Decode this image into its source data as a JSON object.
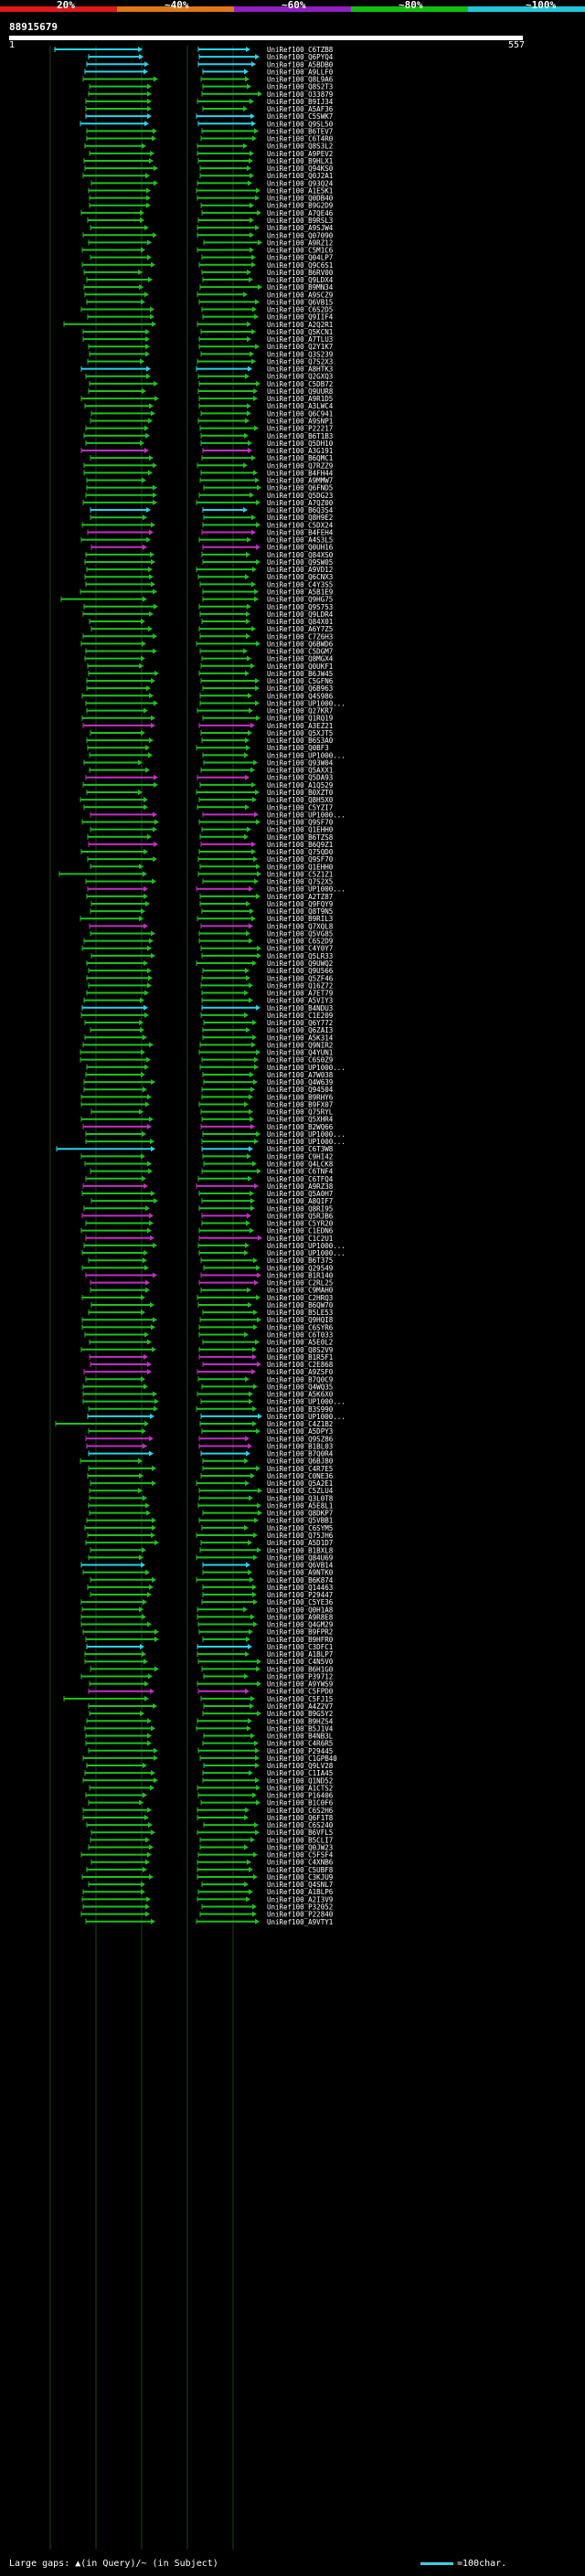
{
  "scale": {
    "labels": [
      "20%",
      "~40%",
      "~60%",
      "~80%",
      "~100%"
    ],
    "colors": [
      "#e01818",
      "#e07818",
      "#9020c0",
      "#10c010",
      "#20c8d8"
    ]
  },
  "query": {
    "id": "88915679",
    "start": "1",
    "end": "557"
  },
  "colors": {
    "cyan": "#28d4e8",
    "green": "#20c020",
    "magenta": "#c030c0",
    "guide": "#204020"
  },
  "hits": [
    {
      "id": "UniRef100_C6TZB8",
      "c": "c"
    },
    {
      "id": "UniRef100_Q6PYQ4",
      "c": "c"
    },
    {
      "id": "UniRef100_A5BDB0",
      "c": "c"
    },
    {
      "id": "UniRef100_A9LLF0",
      "c": "c"
    },
    {
      "id": "UniRef100_Q8L9A6",
      "c": "g"
    },
    {
      "id": "UniRef100_Q8S2T3",
      "c": "g"
    },
    {
      "id": "UniRef100_O33879",
      "c": "g"
    },
    {
      "id": "UniRef100_B9IJ34",
      "c": "g"
    },
    {
      "id": "UniRef100_A5AF36",
      "c": "g"
    },
    {
      "id": "UniRef100_C5SWK7",
      "c": "c"
    },
    {
      "id": "UniRef100_Q9SL50",
      "c": "c"
    },
    {
      "id": "UniRef100_B6TEV7",
      "c": "g"
    },
    {
      "id": "UniRef100_C6T4R0",
      "c": "g"
    },
    {
      "id": "UniRef100_Q8S3L2",
      "c": "g"
    },
    {
      "id": "UniRef100_A9PEV2",
      "c": "g"
    },
    {
      "id": "UniRef100_B9HLX1",
      "c": "g"
    },
    {
      "id": "UniRef100_Q94KS0",
      "c": "g"
    },
    {
      "id": "UniRef100_Q0J2A1",
      "c": "g"
    },
    {
      "id": "UniRef100_Q93Q24",
      "c": "g"
    },
    {
      "id": "UniRef100_A1E5K1",
      "c": "g"
    },
    {
      "id": "UniRef100_Q0DB40",
      "c": "g"
    },
    {
      "id": "UniRef100_B9G2D9",
      "c": "g"
    },
    {
      "id": "UniRef100_A7QE46",
      "c": "g"
    },
    {
      "id": "UniRef100_B9RSL3",
      "c": "g"
    },
    {
      "id": "UniRef100_A9SJW4",
      "c": "g"
    },
    {
      "id": "UniRef100_Q07090",
      "c": "g"
    },
    {
      "id": "UniRef100_A9RZ12",
      "c": "g"
    },
    {
      "id": "UniRef100_C5M1C6",
      "c": "g"
    },
    {
      "id": "UniRef100_Q04LP7",
      "c": "g"
    },
    {
      "id": "UniRef100_Q9C6S1",
      "c": "g"
    },
    {
      "id": "UniRef100_B6RV00",
      "c": "g"
    },
    {
      "id": "UniRef100_Q9LDX4",
      "c": "g"
    },
    {
      "id": "UniRef100_B9MN34",
      "c": "g"
    },
    {
      "id": "UniRef100_A9SCZ9",
      "c": "g"
    },
    {
      "id": "UniRef100_Q6VB15",
      "c": "g"
    },
    {
      "id": "UniRef100_C6S2D5",
      "c": "g"
    },
    {
      "id": "UniRef100_Q9IIF4",
      "c": "g"
    },
    {
      "id": "UniRef100_A2Q2R1",
      "c": "g"
    },
    {
      "id": "UniRef100_Q5KCN1",
      "c": "g"
    },
    {
      "id": "UniRef100_A7TLU3",
      "c": "g"
    },
    {
      "id": "UniRef100_Q2Y1K7",
      "c": "g"
    },
    {
      "id": "UniRef100_Q3S239",
      "c": "g"
    },
    {
      "id": "UniRef100_Q7S2X3",
      "c": "g"
    },
    {
      "id": "UniRef100_A8HTK3",
      "c": "c"
    },
    {
      "id": "UniRef100_Q2GXQ3",
      "c": "g"
    },
    {
      "id": "UniRef100_C5DB72",
      "c": "g"
    },
    {
      "id": "UniRef100_Q9UUR8",
      "c": "g"
    },
    {
      "id": "UniRef100_A9R1D5",
      "c": "g"
    },
    {
      "id": "UniRef100_A3LWC4",
      "c": "g"
    },
    {
      "id": "UniRef100_Q6C941",
      "c": "g"
    },
    {
      "id": "UniRef100_A9SNP1",
      "c": "g"
    },
    {
      "id": "UniRef100_P22217",
      "c": "g"
    },
    {
      "id": "UniRef100_B6T1B3",
      "c": "g"
    },
    {
      "id": "UniRef100_Q5DH10",
      "c": "g"
    },
    {
      "id": "UniRef100_A3G191",
      "c": "m"
    },
    {
      "id": "UniRef100_B6QMC1",
      "c": "g"
    },
    {
      "id": "UniRef100_Q7RZZ9",
      "c": "g"
    },
    {
      "id": "UniRef100_B4FH44",
      "c": "g"
    },
    {
      "id": "UniRef100_A9MMW7",
      "c": "g"
    },
    {
      "id": "UniRef100_Q6FND5",
      "c": "g"
    },
    {
      "id": "UniRef100_Q5DG23",
      "c": "g"
    },
    {
      "id": "UniRef100_A7QZ00",
      "c": "g"
    },
    {
      "id": "UniRef100_B6Q3S4",
      "c": "c"
    },
    {
      "id": "UniRef100_Q8H9E2",
      "c": "g"
    },
    {
      "id": "UniRef100_C5DX24",
      "c": "g"
    },
    {
      "id": "UniRef100_B4FEH4",
      "c": "m"
    },
    {
      "id": "UniRef100_A4S3L5",
      "c": "g"
    },
    {
      "id": "UniRef100_Q0UH16",
      "c": "m"
    },
    {
      "id": "UniRef100_Q84XS0",
      "c": "g"
    },
    {
      "id": "UniRef100_Q9SW05",
      "c": "g"
    },
    {
      "id": "UniRef100_A9VD12",
      "c": "g"
    },
    {
      "id": "UniRef100_Q6CNX3",
      "c": "g"
    },
    {
      "id": "UniRef100_C4Y3S5",
      "c": "g"
    },
    {
      "id": "UniRef100_A5B1E9",
      "c": "g"
    },
    {
      "id": "UniRef100_Q9HG75",
      "c": "g"
    },
    {
      "id": "UniRef100_Q9S753",
      "c": "g"
    },
    {
      "id": "UniRef100_Q9LDR4",
      "c": "g"
    },
    {
      "id": "UniRef100_Q84X01",
      "c": "g"
    },
    {
      "id": "UniRef100_A6Y7Z5",
      "c": "g"
    },
    {
      "id": "UniRef100_C7Z6H3",
      "c": "g"
    },
    {
      "id": "UniRef100_Q6BWD6",
      "c": "g"
    },
    {
      "id": "UniRef100_C5DGM7",
      "c": "g"
    },
    {
      "id": "UniRef100_Q8MGX4",
      "c": "g"
    },
    {
      "id": "UniRef100_Q0UKF1",
      "c": "g"
    },
    {
      "id": "UniRef100_B6JW45",
      "c": "g"
    },
    {
      "id": "UniRef100_C5GFN6",
      "c": "g"
    },
    {
      "id": "UniRef100_Q6B963",
      "c": "g"
    },
    {
      "id": "UniRef100_Q4S986",
      "c": "g"
    },
    {
      "id": "UniRef100_UP1000...",
      "c": "g"
    },
    {
      "id": "UniRef100_Q27KR7",
      "c": "g"
    },
    {
      "id": "UniRef100_Q1RQ19",
      "c": "g"
    },
    {
      "id": "UniRef100_A3EZ21",
      "c": "m"
    },
    {
      "id": "UniRef100_Q5XJT5",
      "c": "g"
    },
    {
      "id": "UniRef100_B6S3A0",
      "c": "g"
    },
    {
      "id": "UniRef100_Q0BF3",
      "c": "g"
    },
    {
      "id": "UniRef100_UP1000...",
      "c": "g"
    },
    {
      "id": "UniRef100_Q93W04",
      "c": "g"
    },
    {
      "id": "UniRef100_Q5AXX1",
      "c": "g"
    },
    {
      "id": "UniRef100_Q5DA93",
      "c": "m"
    },
    {
      "id": "UniRef100_A1Q529",
      "c": "g"
    },
    {
      "id": "UniRef100_B0XZT0",
      "c": "g"
    },
    {
      "id": "UniRef100_Q8H5X0",
      "c": "g"
    },
    {
      "id": "UniRef100_C5YZI7",
      "c": "g"
    },
    {
      "id": "UniRef100_UP1000...",
      "c": "m"
    },
    {
      "id": "UniRef100_Q9SF70",
      "c": "g"
    },
    {
      "id": "UniRef100_Q1EHH0",
      "c": "g"
    },
    {
      "id": "UniRef100_B6TZS8",
      "c": "g"
    },
    {
      "id": "UniRef100_B6Q9Z1",
      "c": "m"
    },
    {
      "id": "UniRef100_Q75QD0",
      "c": "g"
    },
    {
      "id": "UniRef100_Q9SF70",
      "c": "g"
    },
    {
      "id": "UniRef100_Q1EHH0",
      "c": "g"
    },
    {
      "id": "UniRef100_C5Z1Z1",
      "c": "g"
    },
    {
      "id": "UniRef100_Q7S2X5",
      "c": "g"
    },
    {
      "id": "UniRef100_UP1000...",
      "c": "m"
    },
    {
      "id": "UniRef100_A2TZ87",
      "c": "g"
    },
    {
      "id": "UniRef100_Q9FQY9",
      "c": "g"
    },
    {
      "id": "UniRef100_Q8T9N5",
      "c": "g"
    },
    {
      "id": "UniRef100_B9RIL3",
      "c": "g"
    },
    {
      "id": "UniRef100_Q7XQL8",
      "c": "m"
    },
    {
      "id": "UniRef100_Q5VG85",
      "c": "g"
    },
    {
      "id": "UniRef100_C6S2D9",
      "c": "g"
    },
    {
      "id": "UniRef100_C4Y0Y7",
      "c": "g"
    },
    {
      "id": "UniRef100_Q5LR33",
      "c": "g"
    },
    {
      "id": "UniRef100_Q9UWQ2",
      "c": "g"
    },
    {
      "id": "UniRef100_Q9U566",
      "c": "g"
    },
    {
      "id": "UniRef100_Q5ZF46",
      "c": "g"
    },
    {
      "id": "UniRef100_Q16Z72",
      "c": "g"
    },
    {
      "id": "UniRef100_A7ET79",
      "c": "g"
    },
    {
      "id": "UniRef100_A5VIY3",
      "c": "g"
    },
    {
      "id": "UniRef100_B4NDU3",
      "c": "c"
    },
    {
      "id": "UniRef100_C1E209",
      "c": "g"
    },
    {
      "id": "UniRef100_Q6Y772",
      "c": "g"
    },
    {
      "id": "UniRef100_Q6ZAI3",
      "c": "g"
    },
    {
      "id": "UniRef100_A5K314",
      "c": "g"
    },
    {
      "id": "UniRef100_Q9NIR2",
      "c": "g"
    },
    {
      "id": "UniRef100_Q4YUN1",
      "c": "g"
    },
    {
      "id": "UniRef100_C6S0Z9",
      "c": "g"
    },
    {
      "id": "UniRef100_UP1000...",
      "c": "g"
    },
    {
      "id": "UniRef100_A7W038",
      "c": "g"
    },
    {
      "id": "UniRef100_Q4W639",
      "c": "g"
    },
    {
      "id": "UniRef100_Q94504",
      "c": "g"
    },
    {
      "id": "UniRef100_B9RHY6",
      "c": "g"
    },
    {
      "id": "UniRef100_B9FX07",
      "c": "g"
    },
    {
      "id": "UniRef100_Q75RYL",
      "c": "g"
    },
    {
      "id": "UniRef100_Q5XHR4",
      "c": "g"
    },
    {
      "id": "UniRef100_B2WQ66",
      "c": "m"
    },
    {
      "id": "UniRef100_UP1000...",
      "c": "g"
    },
    {
      "id": "UniRef100_UP1000...",
      "c": "g"
    },
    {
      "id": "UniRef100_C6T3W8",
      "c": "c"
    },
    {
      "id": "UniRef100_C9HI42",
      "c": "g"
    },
    {
      "id": "UniRef100_Q4LCK8",
      "c": "g"
    },
    {
      "id": "UniRef100_C6TNF4",
      "c": "g"
    },
    {
      "id": "UniRef100_C6TFQ4",
      "c": "g"
    },
    {
      "id": "UniRef100_A9RZ38",
      "c": "m"
    },
    {
      "id": "UniRef100_Q5A0H7",
      "c": "g"
    },
    {
      "id": "UniRef100_A8QIF7",
      "c": "g"
    },
    {
      "id": "UniRef100_Q8RI95",
      "c": "g"
    },
    {
      "id": "UniRef100_Q5RJB6",
      "c": "m"
    },
    {
      "id": "UniRef100_C5YR20",
      "c": "g"
    },
    {
      "id": "UniRef100_C1EDN6",
      "c": "g"
    },
    {
      "id": "UniRef100_C1C2U1",
      "c": "m"
    },
    {
      "id": "UniRef100_UP1000...",
      "c": "g"
    },
    {
      "id": "UniRef100_UP1000...",
      "c": "g"
    },
    {
      "id": "UniRef100_B6T375",
      "c": "g"
    },
    {
      "id": "UniRef100_Q29549",
      "c": "g"
    },
    {
      "id": "UniRef100_B1R140",
      "c": "m"
    },
    {
      "id": "UniRef100_C2RL25",
      "c": "m"
    },
    {
      "id": "UniRef100_C9MAH0",
      "c": "g"
    },
    {
      "id": "UniRef100_C2HRQ3",
      "c": "g"
    },
    {
      "id": "UniRef100_B6QW70",
      "c": "g"
    },
    {
      "id": "UniRef100_B5LE53",
      "c": "g"
    },
    {
      "id": "UniRef100_Q9HQI8",
      "c": "g"
    },
    {
      "id": "UniRef100_C6SYR6",
      "c": "g"
    },
    {
      "id": "UniRef100_C6T033",
      "c": "g"
    },
    {
      "id": "UniRef100_A5E0L2",
      "c": "g"
    },
    {
      "id": "UniRef100_Q8S2V9",
      "c": "g"
    },
    {
      "id": "UniRef100_B1R5F1",
      "c": "m"
    },
    {
      "id": "UniRef100_C2E868",
      "c": "m"
    },
    {
      "id": "UniRef100_A9ZSF0",
      "c": "m"
    },
    {
      "id": "UniRef100_B7Q0C9",
      "c": "g"
    },
    {
      "id": "UniRef100_Q4WQ35",
      "c": "g"
    },
    {
      "id": "UniRef100_A5K6X0",
      "c": "g"
    },
    {
      "id": "UniRef100_UP1000...",
      "c": "g"
    },
    {
      "id": "UniRef100_B3S990",
      "c": "g"
    },
    {
      "id": "UniRef100_UP1000...",
      "c": "c"
    },
    {
      "id": "UniRef100_C4Z1B2",
      "c": "g"
    },
    {
      "id": "UniRef100_A5DPY3",
      "c": "g"
    },
    {
      "id": "UniRef100_Q9SZ86",
      "c": "m"
    },
    {
      "id": "UniRef100_B1BL03",
      "c": "m"
    },
    {
      "id": "UniRef100_B7Q0R4",
      "c": "c"
    },
    {
      "id": "UniRef100_Q6BJ80",
      "c": "g"
    },
    {
      "id": "UniRef100_C4R7E5",
      "c": "g"
    },
    {
      "id": "UniRef100_C0NE36",
      "c": "g"
    },
    {
      "id": "UniRef100_Q5A2E1",
      "c": "g"
    },
    {
      "id": "UniRef100_C5ZLU4",
      "c": "g"
    },
    {
      "id": "UniRef100_Q3L0T8",
      "c": "g"
    },
    {
      "id": "UniRef100_A5E8L1",
      "c": "g"
    },
    {
      "id": "UniRef100_Q8DKP7",
      "c": "g"
    },
    {
      "id": "UniRef100_Q5VBB1",
      "c": "g"
    },
    {
      "id": "UniRef100_C6SYM5",
      "c": "g"
    },
    {
      "id": "UniRef100_Q75JH6",
      "c": "g"
    },
    {
      "id": "UniRef100_A5D1D7",
      "c": "g"
    },
    {
      "id": "UniRef100_B1BXL8",
      "c": "g"
    },
    {
      "id": "UniRef100_Q84U69",
      "c": "g"
    },
    {
      "id": "UniRef100_Q6VB14",
      "c": "c"
    },
    {
      "id": "UniRef100_A9NTK0",
      "c": "g"
    },
    {
      "id": "UniRef100_B6K874",
      "c": "g"
    },
    {
      "id": "UniRef100_Q14463",
      "c": "g"
    },
    {
      "id": "UniRef100_P29447",
      "c": "g"
    },
    {
      "id": "UniRef100_C5YE36",
      "c": "g"
    },
    {
      "id": "UniRef100_Q0H1A8",
      "c": "g"
    },
    {
      "id": "UniRef100_A9R8E8",
      "c": "g"
    },
    {
      "id": "UniRef100_Q4GM29",
      "c": "g"
    },
    {
      "id": "UniRef100_B9FPR2",
      "c": "g"
    },
    {
      "id": "UniRef100_B9HFR0",
      "c": "g"
    },
    {
      "id": "UniRef100_C3DFC1",
      "c": "c"
    },
    {
      "id": "UniRef100_A1BLP7",
      "c": "g"
    },
    {
      "id": "UniRef100_C4N5V0",
      "c": "g"
    },
    {
      "id": "UniRef100_B6H1G0",
      "c": "g"
    },
    {
      "id": "UniRef100_P39712",
      "c": "g"
    },
    {
      "id": "UniRef100_A9YWS9",
      "c": "g"
    },
    {
      "id": "UniRef100_C5FPD0",
      "c": "m"
    },
    {
      "id": "UniRef100_C5FJ15",
      "c": "g"
    },
    {
      "id": "UniRef100_A4Z2V7",
      "c": "g"
    },
    {
      "id": "UniRef100_B9G5Y2",
      "c": "g"
    },
    {
      "id": "UniRef100_B9HZS4",
      "c": "g"
    },
    {
      "id": "UniRef100_B5J1V4",
      "c": "g"
    },
    {
      "id": "UniRef100_B4NB3L",
      "c": "g"
    },
    {
      "id": "UniRef100_C4R6R5",
      "c": "g"
    },
    {
      "id": "UniRef100_P29445",
      "c": "g"
    },
    {
      "id": "UniRef100_C1GPB40",
      "c": "g"
    },
    {
      "id": "UniRef100_Q9LV28",
      "c": "g"
    },
    {
      "id": "UniRef100_C1IA45",
      "c": "g"
    },
    {
      "id": "UniRef100_Q1ND52",
      "c": "g"
    },
    {
      "id": "UniRef100_A1CTS2",
      "c": "g"
    },
    {
      "id": "UniRef100_P16406",
      "c": "g"
    },
    {
      "id": "UniRef100_B1C0F6",
      "c": "g"
    },
    {
      "id": "UniRef100_C6S2H6",
      "c": "g"
    },
    {
      "id": "UniRef100_Q6F1T8",
      "c": "g"
    },
    {
      "id": "UniRef100_C6S240",
      "c": "g"
    },
    {
      "id": "UniRef100_B6VFL5",
      "c": "g"
    },
    {
      "id": "UniRef100_B5CLI7",
      "c": "g"
    },
    {
      "id": "UniRef100_Q0JW23",
      "c": "g"
    },
    {
      "id": "UniRef100_C5FSF4",
      "c": "g"
    },
    {
      "id": "UniRef100_C4XNB6",
      "c": "g"
    },
    {
      "id": "UniRef100_C5UBF8",
      "c": "g"
    },
    {
      "id": "UniRef100_C3KJU9",
      "c": "g"
    },
    {
      "id": "UniRef100_Q4SNL7",
      "c": "g"
    },
    {
      "id": "UniRef100_A1BLP6",
      "c": "g"
    },
    {
      "id": "UniRef100_A2I3V9",
      "c": "g"
    },
    {
      "id": "UniRef100_P32052",
      "c": "g"
    },
    {
      "id": "UniRef100_P22840",
      "c": "g"
    },
    {
      "id": "UniRef100_A9VTY1",
      "c": "g"
    }
  ],
  "legend": {
    "large_gaps": "Large gaps: ▲(in Query)/~ (in Subject)",
    "scale": "=100char."
  }
}
